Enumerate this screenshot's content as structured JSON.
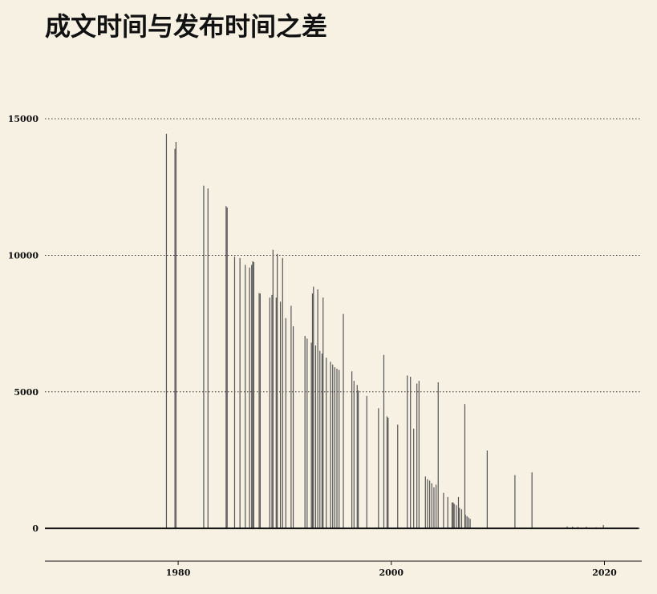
{
  "chart_data": {
    "type": "bar",
    "title": "成文时间与发布时间之差",
    "xlabel": "",
    "ylabel": "",
    "xlim": [
      1967.5,
      2023.5
    ],
    "ylim": [
      -1200,
      16500
    ],
    "yticks": [
      0,
      5000,
      10000,
      15000
    ],
    "xticks": [
      1980,
      2000,
      2020
    ],
    "grid": "horizontal-dotted",
    "bar_color": "#555555",
    "baseline_color": "#111111",
    "points": [
      [
        1978.9,
        14450
      ],
      [
        1979.7,
        13900
      ],
      [
        1979.8,
        14150
      ],
      [
        1982.4,
        12550
      ],
      [
        1982.8,
        12450
      ],
      [
        1984.5,
        11800
      ],
      [
        1984.6,
        11750
      ],
      [
        1985.3,
        9950
      ],
      [
        1985.8,
        9900
      ],
      [
        1986.3,
        9650
      ],
      [
        1986.7,
        9550
      ],
      [
        1986.9,
        9650
      ],
      [
        1987.0,
        9780
      ],
      [
        1987.1,
        9750
      ],
      [
        1987.6,
        8620
      ],
      [
        1987.7,
        8600
      ],
      [
        1988.6,
        8450
      ],
      [
        1988.8,
        8550
      ],
      [
        1988.9,
        10200
      ],
      [
        1989.2,
        8450
      ],
      [
        1989.3,
        10050
      ],
      [
        1989.6,
        8300
      ],
      [
        1989.8,
        9900
      ],
      [
        1990.1,
        7700
      ],
      [
        1990.6,
        8150
      ],
      [
        1990.8,
        7400
      ],
      [
        1991.9,
        7050
      ],
      [
        1992.1,
        6950
      ],
      [
        1992.5,
        6800
      ],
      [
        1992.6,
        8600
      ],
      [
        1992.7,
        8850
      ],
      [
        1992.9,
        6700
      ],
      [
        1993.1,
        8750
      ],
      [
        1993.3,
        6500
      ],
      [
        1993.5,
        6400
      ],
      [
        1993.6,
        8450
      ],
      [
        1993.9,
        6250
      ],
      [
        1994.3,
        6100
      ],
      [
        1994.5,
        6000
      ],
      [
        1994.7,
        5900
      ],
      [
        1994.9,
        5850
      ],
      [
        1995.1,
        5800
      ],
      [
        1995.5,
        7850
      ],
      [
        1996.3,
        5750
      ],
      [
        1996.5,
        5400
      ],
      [
        1996.8,
        5250
      ],
      [
        1996.9,
        5050
      ],
      [
        1997.7,
        4850
      ],
      [
        1998.8,
        4400
      ],
      [
        1999.3,
        6350
      ],
      [
        1999.6,
        4100
      ],
      [
        1999.7,
        4050
      ],
      [
        2000.6,
        3800
      ],
      [
        2001.5,
        5600
      ],
      [
        2001.8,
        5550
      ],
      [
        2002.1,
        3650
      ],
      [
        2002.4,
        5300
      ],
      [
        2002.6,
        5400
      ],
      [
        2003.2,
        1900
      ],
      [
        2003.4,
        1800
      ],
      [
        2003.6,
        1750
      ],
      [
        2003.8,
        1650
      ],
      [
        2004.0,
        1500
      ],
      [
        2004.2,
        1600
      ],
      [
        2004.4,
        5350
      ],
      [
        2004.9,
        1300
      ],
      [
        2005.3,
        1150
      ],
      [
        2005.7,
        950
      ],
      [
        2005.8,
        950
      ],
      [
        2005.9,
        900
      ],
      [
        2006.1,
        850
      ],
      [
        2006.3,
        1150
      ],
      [
        2006.4,
        750
      ],
      [
        2006.6,
        700
      ],
      [
        2006.9,
        4550
      ],
      [
        2006.95,
        500
      ],
      [
        2007.1,
        450
      ],
      [
        2007.25,
        400
      ],
      [
        2007.4,
        350
      ],
      [
        2009.0,
        2850
      ],
      [
        2011.6,
        1950
      ],
      [
        2013.2,
        2050
      ],
      [
        2016.5,
        70
      ],
      [
        2017.0,
        60
      ],
      [
        2017.5,
        50
      ],
      [
        2018.3,
        60
      ],
      [
        2019.2,
        40
      ],
      [
        2019.9,
        120
      ]
    ]
  }
}
